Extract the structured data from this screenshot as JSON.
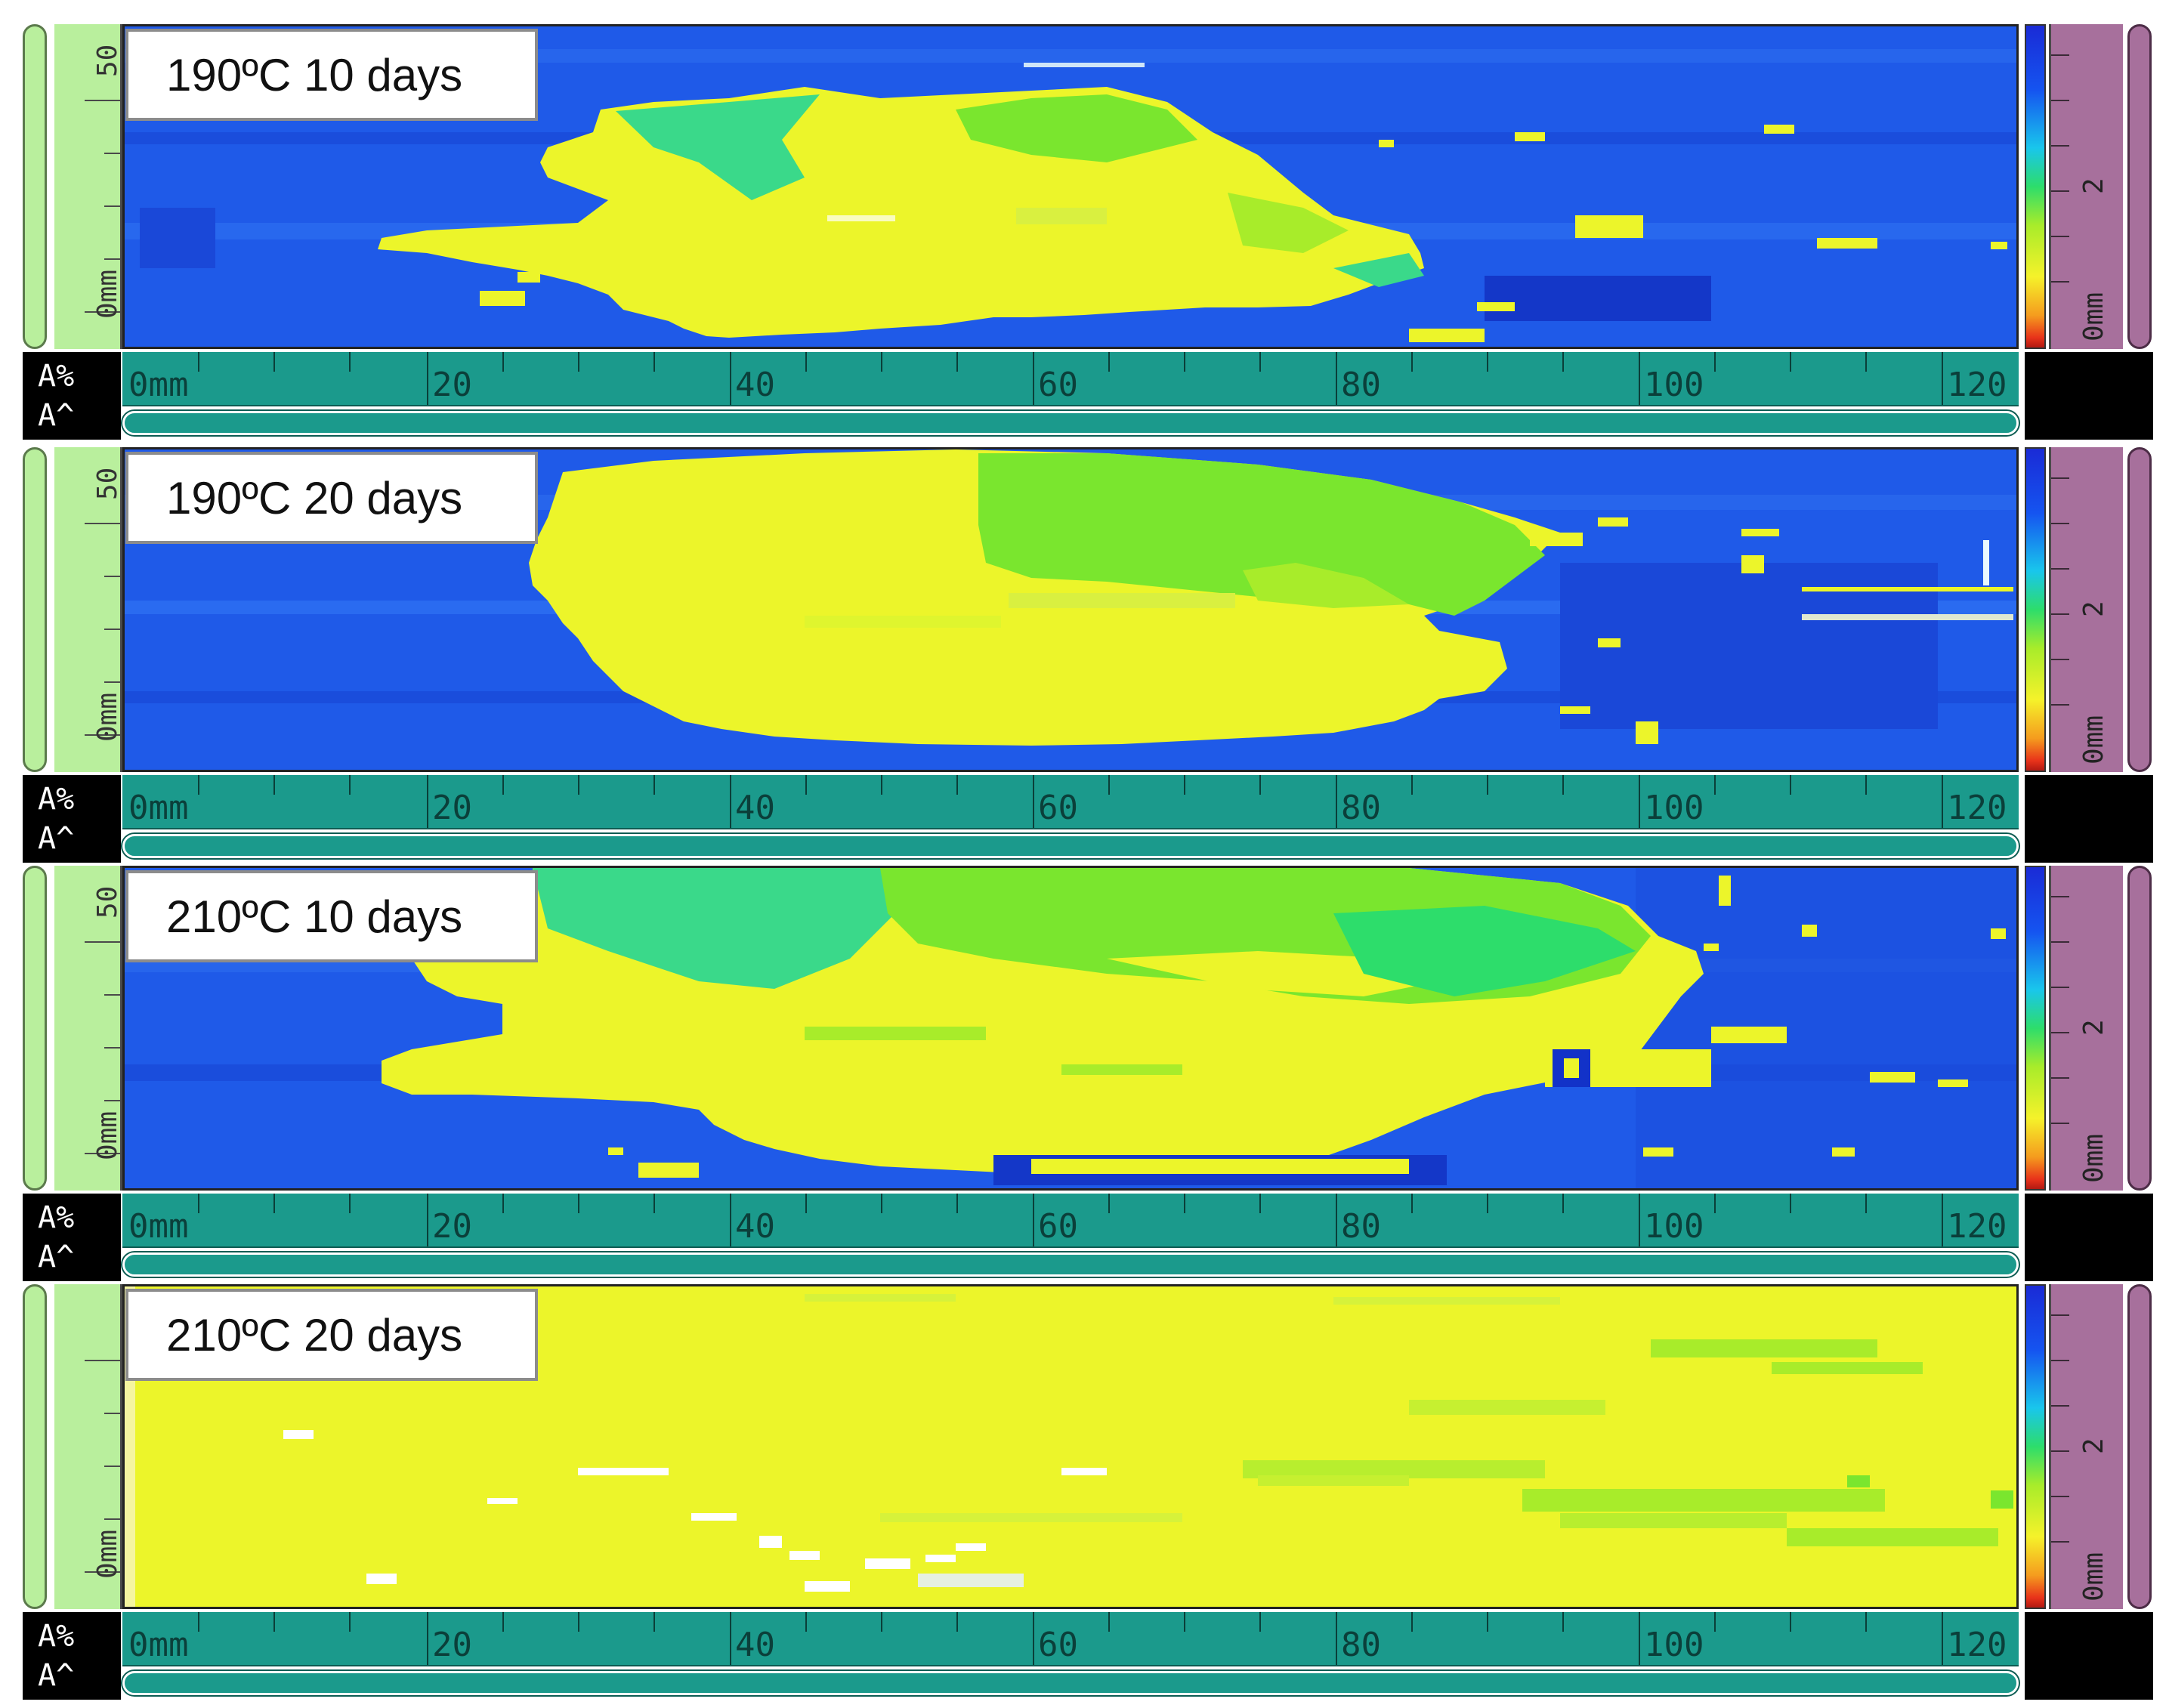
{
  "panels": [
    {
      "label": "190ºC 10 days",
      "y_axis_labels": [
        "50",
        "0mm"
      ],
      "palette_labels": [
        "2",
        "0mm"
      ],
      "amplitude_labels": [
        "A%",
        "A^"
      ],
      "x_axis_labels": [
        "0mm",
        "20",
        "40",
        "60",
        "80",
        "100",
        "120"
      ]
    },
    {
      "label": "190ºC 20 days",
      "y_axis_labels": [
        "50",
        "0mm"
      ],
      "palette_labels": [
        "2",
        "0mm"
      ],
      "amplitude_labels": [
        "A%",
        "A^"
      ],
      "x_axis_labels": [
        "0mm",
        "20",
        "40",
        "60",
        "80",
        "100",
        "120"
      ]
    },
    {
      "label": "210ºC 10 days",
      "y_axis_labels": [
        "50",
        "0mm"
      ],
      "palette_labels": [
        "2",
        "0mm"
      ],
      "amplitude_labels": [
        "A%",
        "A^"
      ],
      "x_axis_labels": [
        "0mm",
        "20",
        "40",
        "60",
        "80",
        "100",
        "120"
      ]
    },
    {
      "label": "210ºC 20 days",
      "y_axis_labels": [
        "0mm"
      ],
      "palette_labels": [
        "2",
        "0mm"
      ],
      "amplitude_labels": [
        "A%",
        "A^"
      ],
      "x_axis_labels": [
        "0mm",
        "20",
        "40",
        "60",
        "80",
        "100",
        "120"
      ]
    }
  ],
  "colors": {
    "background_blue": "#1f5ae8",
    "deep_blue": "#1232c8",
    "damage_yellow": "#ecf52a",
    "damage_green": "#7ae62e",
    "damage_teal": "#3ad98a",
    "axis_teal": "#1b9a8c",
    "left_rail_green": "#b9ef9d",
    "right_rail_purple": "#a7709c"
  },
  "icons": {
    "left_rail": "vertical-scrollbar",
    "right_rail": "palette-scrollbar",
    "bottom_rail": "horizontal-scrollbar"
  }
}
